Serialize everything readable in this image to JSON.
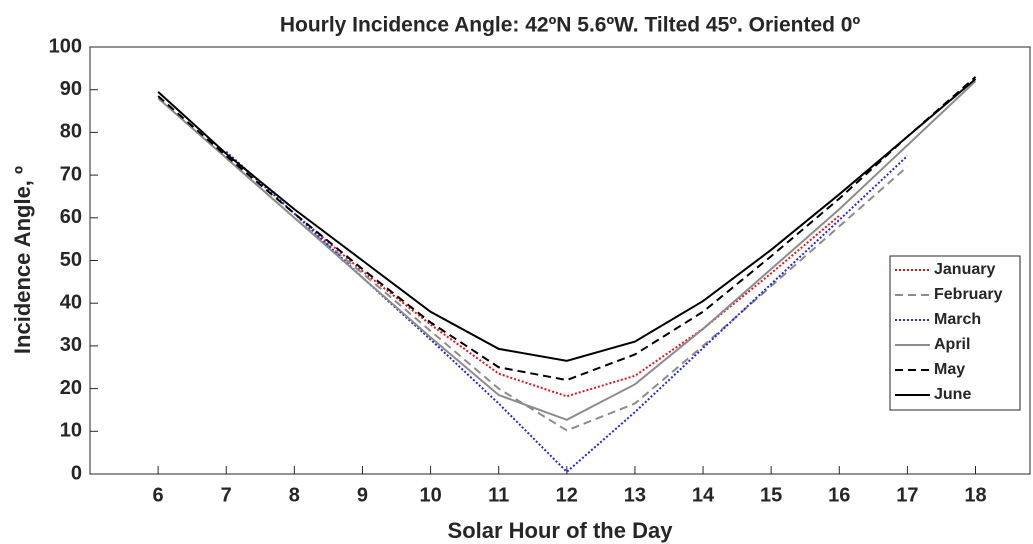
{
  "chart_data": {
    "type": "line",
    "title": "Hourly Incidence Angle: 42ºN 5.6ºW. Tilted 45º. Oriented 0º",
    "x_label": "Solar Hour of the Day",
    "y_label": "Incidence Angle, º",
    "x": [
      6,
      7,
      8,
      9,
      10,
      11,
      12,
      13,
      14,
      15,
      16,
      17,
      18
    ],
    "series": [
      {
        "name": "January",
        "color": "#e8141c",
        "style": "dotted",
        "values": [
          null,
          null,
          61,
          47.5,
          35,
          23.5,
          18.2,
          23,
          34,
          47,
          60.5,
          null,
          null
        ]
      },
      {
        "name": "February",
        "color": "#8c8c8c",
        "style": "dashed",
        "values": [
          null,
          74,
          60,
          47,
          33.5,
          20,
          10.2,
          16.5,
          30,
          44,
          58,
          72,
          null
        ]
      },
      {
        "name": "March",
        "color": "#1f2bd6",
        "style": "dotted",
        "values": [
          null,
          75.5,
          61,
          46,
          31.5,
          16.5,
          0.5,
          14.5,
          29.5,
          44.5,
          59.5,
          74.5,
          null
        ]
      },
      {
        "name": "April",
        "color": "#8c8c8c",
        "style": "solid",
        "values": [
          88,
          74,
          60,
          46,
          32,
          18.5,
          12.7,
          21,
          34,
          48,
          62,
          77,
          92
        ]
      },
      {
        "name": "May",
        "color": "#000000",
        "style": "dashed",
        "values": [
          88.5,
          74.5,
          61,
          48,
          35.5,
          25,
          22,
          28,
          38,
          51,
          64.5,
          79,
          93
        ]
      },
      {
        "name": "June",
        "color": "#000000",
        "style": "solid",
        "values": [
          89.5,
          75,
          62,
          50,
          38,
          29.3,
          26.5,
          31,
          40.5,
          52.5,
          65.5,
          79,
          92.5
        ]
      }
    ],
    "xlim": [
      5,
      18.8
    ],
    "xticks": [
      6,
      7,
      8,
      9,
      10,
      11,
      12,
      13,
      14,
      15,
      16,
      17,
      18
    ],
    "ylim": [
      0,
      100
    ],
    "yticks": [
      0,
      10,
      20,
      30,
      40,
      50,
      60,
      70,
      80,
      90,
      100
    ],
    "legend": "east"
  }
}
